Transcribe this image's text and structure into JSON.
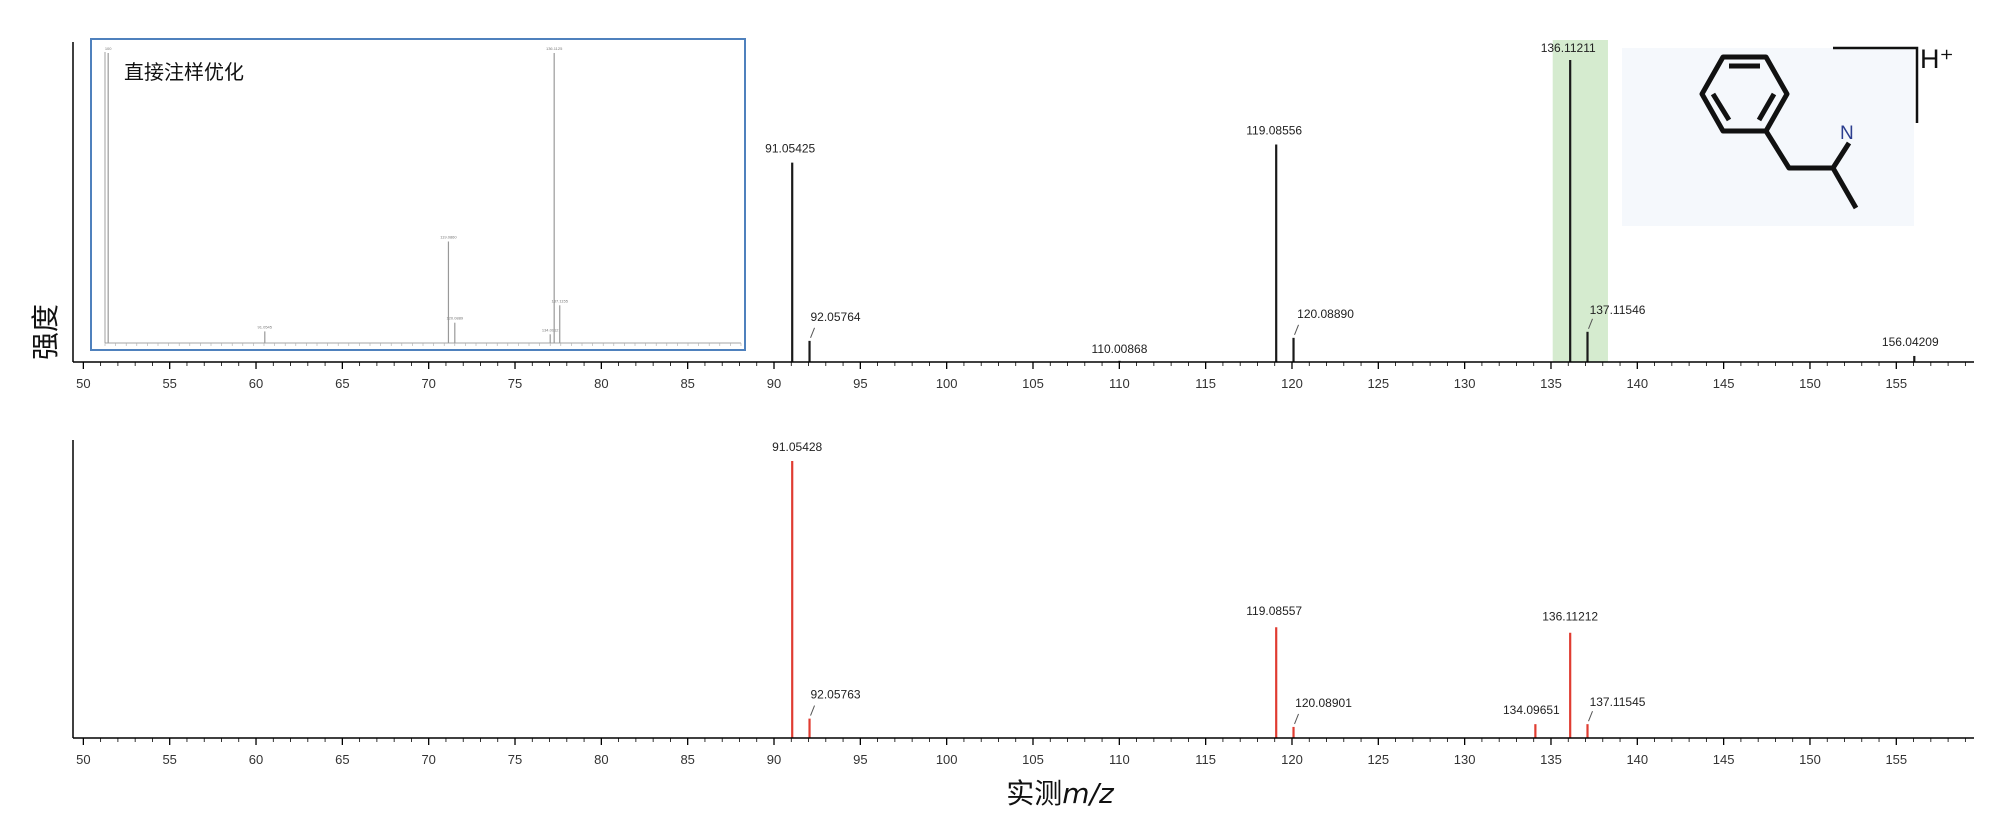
{
  "ylabel": "强度",
  "xlabel_prefix": "实测",
  "xlabel_var": "m/z",
  "inset_title": "直接注样优化",
  "structure": {
    "atom_label": "N",
    "ion_charge": "H⁺"
  },
  "colors": {
    "top_peaks": "#1a1a1a",
    "bottom_peaks": "#e03c31",
    "highlight": "#d5ebcf",
    "inset_border": "#4f81bd",
    "structure_bg": "#f5f8fc",
    "nitrogen": "#2c3e8f"
  },
  "chart_data": [
    {
      "type": "bar",
      "panel": "top",
      "x_ticks": [
        50,
        55,
        60,
        65,
        70,
        75,
        80,
        85,
        90,
        95,
        100,
        105,
        110,
        115,
        120,
        125,
        130,
        135,
        140,
        145,
        150,
        155
      ],
      "xlim": [
        49.4,
        159.5
      ],
      "ylim": [
        0,
        100
      ],
      "highlight_range": [
        135.1,
        138.3
      ],
      "peaks": [
        {
          "mz": 91.05425,
          "intensity": 66,
          "label": "91.05425"
        },
        {
          "mz": 92.05764,
          "intensity": 7,
          "label": "92.05764"
        },
        {
          "mz": 110.00868,
          "intensity": 0.4,
          "label": "110.00868"
        },
        {
          "mz": 119.08556,
          "intensity": 72,
          "label": "119.08556"
        },
        {
          "mz": 120.0889,
          "intensity": 8,
          "label": "120.08890"
        },
        {
          "mz": 136.11211,
          "intensity": 100,
          "label": "136.11211"
        },
        {
          "mz": 137.11546,
          "intensity": 10,
          "label": "137.11546"
        },
        {
          "mz": 156.04209,
          "intensity": 2,
          "label": "156.04209"
        }
      ]
    },
    {
      "type": "bar",
      "panel": "bottom",
      "x_ticks": [
        50,
        55,
        60,
        65,
        70,
        75,
        80,
        85,
        90,
        95,
        100,
        105,
        110,
        115,
        120,
        125,
        130,
        135,
        140,
        145,
        150,
        155
      ],
      "xlim": [
        49.4,
        159.5
      ],
      "ylim": [
        0,
        100
      ],
      "peaks": [
        {
          "mz": 91.05428,
          "intensity": 100,
          "label": "91.05428"
        },
        {
          "mz": 92.05763,
          "intensity": 7,
          "label": "92.05763"
        },
        {
          "mz": 119.08557,
          "intensity": 40,
          "label": "119.08557"
        },
        {
          "mz": 120.08901,
          "intensity": 4,
          "label": "120.08901"
        },
        {
          "mz": 134.09651,
          "intensity": 5,
          "label": "134.09651"
        },
        {
          "mz": 136.11212,
          "intensity": 38,
          "label": "136.11212"
        },
        {
          "mz": 137.11545,
          "intensity": 5,
          "label": "137.11545"
        }
      ]
    },
    {
      "type": "bar",
      "panel": "inset",
      "xlim": [
        50,
        90
      ],
      "ylim": [
        0,
        100
      ],
      "peaks": [
        {
          "mz": 50.2,
          "intensity": 100,
          "label": "100"
        },
        {
          "mz": 60.05,
          "intensity": 4,
          "label": "91.0545"
        },
        {
          "mz": 71.6,
          "intensity": 35,
          "label": "119.0860"
        },
        {
          "mz": 72.0,
          "intensity": 7,
          "label": "120.0889"
        },
        {
          "mz": 78.0,
          "intensity": 3,
          "label": "134.0912"
        },
        {
          "mz": 78.25,
          "intensity": 100,
          "label": "136.1125"
        },
        {
          "mz": 78.6,
          "intensity": 13,
          "label": "137.1155"
        }
      ]
    }
  ]
}
